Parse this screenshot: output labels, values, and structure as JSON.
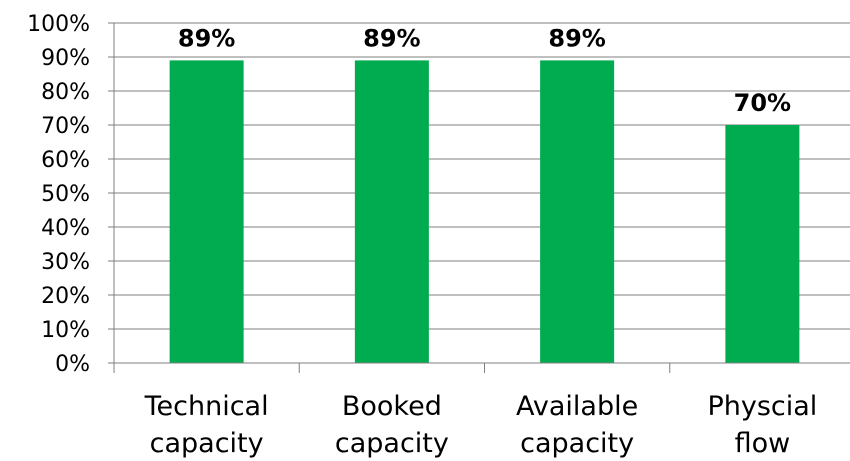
{
  "chart_data": {
    "type": "bar",
    "categories": [
      [
        "Technical",
        "capacity"
      ],
      [
        "Booked",
        "capacity"
      ],
      [
        "Available",
        "capacity"
      ],
      [
        "Physcial",
        "flow"
      ]
    ],
    "values": [
      89,
      89,
      89,
      70
    ],
    "data_labels": [
      "89%",
      "89%",
      "89%",
      "70%"
    ],
    "y_ticks": [
      "0%",
      "10%",
      "20%",
      "30%",
      "40%",
      "50%",
      "60%",
      "70%",
      "80%",
      "90%",
      "100%"
    ],
    "ylim": [
      0,
      100
    ],
    "grid": true,
    "legend": "none",
    "title": "",
    "xlabel": "",
    "ylabel": "",
    "colors": {
      "bar": "#00ac4f",
      "grid": "#7f7f7f",
      "axis": "#7f7f7f"
    }
  }
}
